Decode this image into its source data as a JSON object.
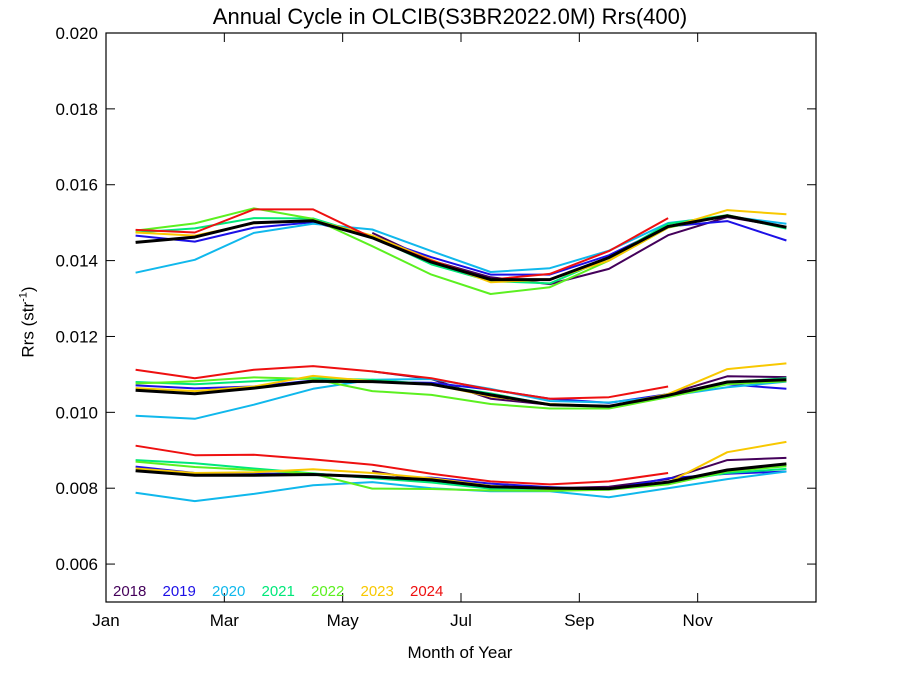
{
  "chart_data": {
    "type": "line",
    "title": "Annual Cycle in OLCIB(S3BR2022.0M) Rrs(400)",
    "xlabel": "Month of Year",
    "ylabel": "Rrs (str",
    "ylabel_exp": "-1",
    "ylabel_close": ")",
    "xlim": [
      0,
      12
    ],
    "ylim": [
      0.005,
      0.02
    ],
    "x_ticks": [
      {
        "x": 0,
        "label": "Jan"
      },
      {
        "x": 2,
        "label": "Mar"
      },
      {
        "x": 4,
        "label": "May"
      },
      {
        "x": 6,
        "label": "Jul"
      },
      {
        "x": 8,
        "label": "Sep"
      },
      {
        "x": 10,
        "label": "Nov"
      }
    ],
    "y_ticks": [
      0.006,
      0.008,
      0.01,
      0.012,
      0.014,
      0.016,
      0.018,
      0.02
    ],
    "y_tick_labels": [
      "0.006",
      "0.008",
      "0.010",
      "0.012",
      "0.014",
      "0.016",
      "0.018",
      "0.020"
    ],
    "x": [
      0.5,
      1.5,
      2.5,
      3.5,
      4.5,
      5.5,
      6.5,
      7.5,
      8.5,
      9.5,
      10.5,
      11.5
    ],
    "bands": [
      "upper",
      "middle",
      "lower"
    ],
    "series": [
      {
        "name": "2018",
        "color": "#44005a",
        "upper": [
          null,
          null,
          null,
          null,
          0.01473,
          0.014,
          0.01356,
          0.01338,
          0.01378,
          0.01467,
          0.01515,
          0.01488
        ],
        "middle": [
          null,
          null,
          null,
          null,
          0.01108,
          0.01088,
          0.01036,
          0.0102,
          0.01016,
          0.01048,
          0.01095,
          0.01093
        ],
        "lower": [
          null,
          null,
          null,
          null,
          0.00845,
          0.00818,
          0.00802,
          0.008,
          0.00804,
          0.00824,
          0.00874,
          0.0088
        ]
      },
      {
        "name": "2019",
        "color": "#1c10e6",
        "upper": [
          0.01466,
          0.0145,
          0.01487,
          0.01501,
          0.01462,
          0.01409,
          0.01363,
          0.01363,
          0.01414,
          0.0149,
          0.01504,
          0.01453
        ],
        "middle": [
          0.01071,
          0.01063,
          0.01068,
          0.01084,
          0.0108,
          0.01078,
          0.0106,
          0.01036,
          0.01025,
          0.01048,
          0.01074,
          0.01062
        ],
        "lower": [
          0.00857,
          0.0084,
          0.00838,
          0.00838,
          0.00828,
          0.00828,
          0.00812,
          0.00803,
          0.00797,
          0.00826,
          0.00838,
          0.00844
        ]
      },
      {
        "name": "2020",
        "color": "#10b8ec",
        "upper": [
          0.01368,
          0.01402,
          0.01473,
          0.01497,
          0.01482,
          0.01425,
          0.0137,
          0.0138,
          0.01426,
          0.01499,
          0.01517,
          0.01497
        ],
        "middle": [
          0.00991,
          0.00983,
          0.0102,
          0.01062,
          0.01086,
          0.01088,
          0.01062,
          0.0103,
          0.01026,
          0.01043,
          0.01066,
          0.01081
        ],
        "lower": [
          0.00788,
          0.00766,
          0.00785,
          0.00808,
          0.00816,
          0.008,
          0.00792,
          0.00792,
          0.00776,
          0.008,
          0.00824,
          0.00844
        ]
      },
      {
        "name": "2021",
        "color": "#00e87a",
        "upper": [
          0.01474,
          0.01485,
          0.01512,
          0.01511,
          0.01463,
          0.0139,
          0.01346,
          0.0134,
          0.01407,
          0.01497,
          0.0152,
          0.01484
        ],
        "middle": [
          0.0108,
          0.01074,
          0.01082,
          0.0109,
          0.01086,
          0.01074,
          0.0105,
          0.0102,
          0.01016,
          0.01042,
          0.0108,
          0.0109
        ],
        "lower": [
          0.00874,
          0.00866,
          0.00852,
          0.00839,
          0.00826,
          0.00815,
          0.00799,
          0.00798,
          0.00799,
          0.00815,
          0.0084,
          0.00851
        ]
      },
      {
        "name": "2022",
        "color": "#5cf020",
        "upper": [
          0.01479,
          0.01498,
          0.01538,
          0.0151,
          0.01438,
          0.01363,
          0.01312,
          0.0133,
          0.014,
          0.01487,
          0.0152,
          0.01488
        ],
        "middle": [
          0.01076,
          0.01082,
          0.01092,
          0.01088,
          0.01056,
          0.01046,
          0.01022,
          0.0101,
          0.0101,
          0.0104,
          0.01074,
          0.01082
        ],
        "lower": [
          0.0087,
          0.00856,
          0.00848,
          0.00838,
          0.00799,
          0.00798,
          0.00794,
          0.00793,
          0.00796,
          0.0081,
          0.00844,
          0.00858
        ]
      },
      {
        "name": "2023",
        "color": "#f8c800",
        "upper": [
          0.01474,
          0.01466,
          0.01498,
          0.01506,
          0.01466,
          0.01402,
          0.01343,
          0.0135,
          0.014,
          0.01487,
          0.01533,
          0.01522
        ],
        "middle": [
          0.01064,
          0.01056,
          0.01068,
          0.01096,
          0.01082,
          0.01074,
          0.01042,
          0.01022,
          0.01016,
          0.01048,
          0.01114,
          0.01129
        ],
        "lower": [
          0.00852,
          0.0084,
          0.00842,
          0.0085,
          0.0084,
          0.00826,
          0.00806,
          0.00798,
          0.008,
          0.00815,
          0.00895,
          0.00922
        ]
      },
      {
        "name": "2024",
        "color": "#ee1010",
        "upper": [
          0.01481,
          0.01474,
          0.01535,
          0.01535,
          0.0146,
          0.014,
          0.0135,
          0.01365,
          0.01425,
          0.01512,
          null,
          null
        ],
        "middle": [
          0.01112,
          0.0109,
          0.01112,
          0.01122,
          0.01108,
          0.0109,
          0.0106,
          0.01036,
          0.0104,
          0.01068,
          null,
          null
        ],
        "lower": [
          0.00912,
          0.00887,
          0.00888,
          0.00876,
          0.00862,
          0.00838,
          0.00818,
          0.0081,
          0.00818,
          0.0084,
          null,
          null
        ]
      },
      {
        "name": "",
        "color": "#000000",
        "upper": [
          0.01448,
          0.01462,
          0.015,
          0.01505,
          0.0146,
          0.01396,
          0.0135,
          0.0135,
          0.01408,
          0.0149,
          0.01518,
          0.01488
        ],
        "middle": [
          0.01058,
          0.01049,
          0.01064,
          0.01082,
          0.01081,
          0.01074,
          0.01046,
          0.0102,
          0.01016,
          0.01045,
          0.0108,
          0.01086
        ],
        "lower": [
          0.00846,
          0.00834,
          0.00834,
          0.00836,
          0.0083,
          0.00822,
          0.00804,
          0.008,
          0.00799,
          0.00816,
          0.00848,
          0.00864
        ]
      }
    ]
  }
}
